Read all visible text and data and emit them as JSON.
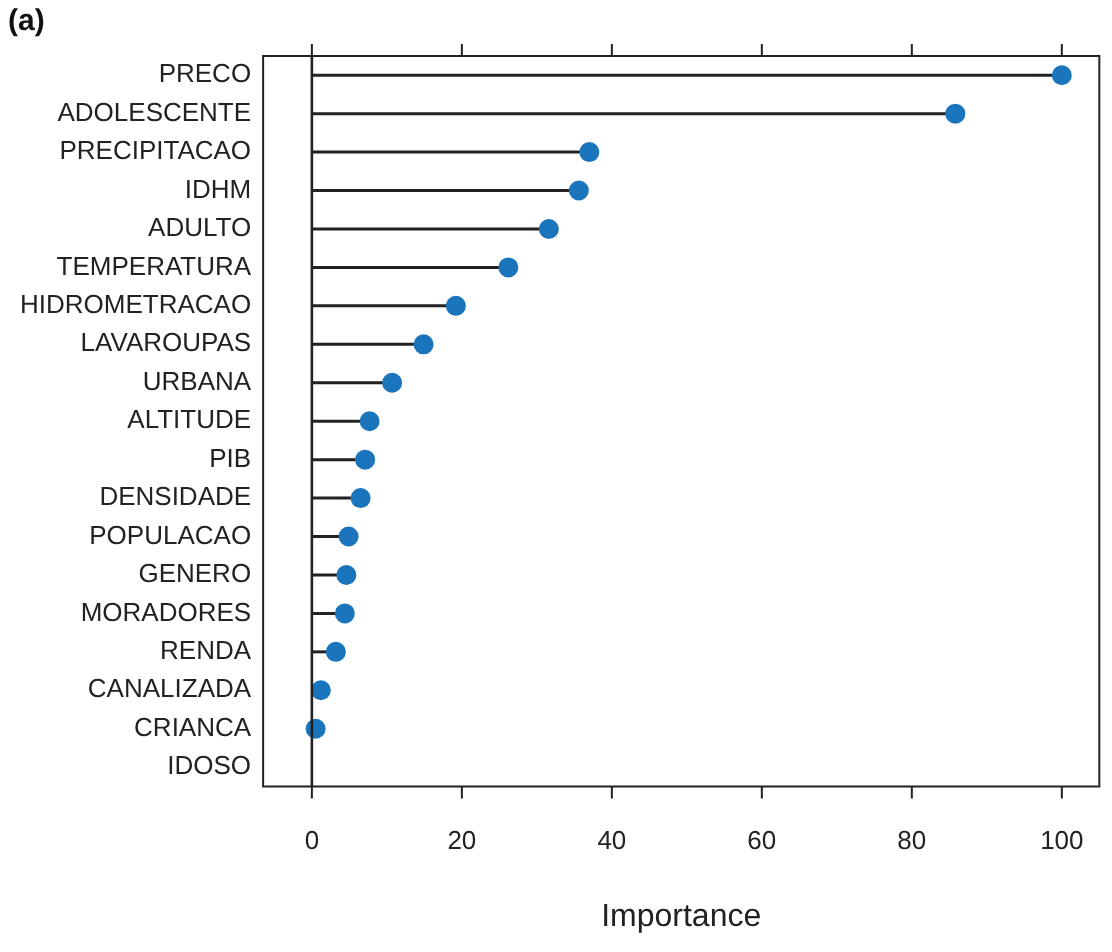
{
  "chart_data": {
    "type": "lollipop",
    "orientation": "horizontal",
    "title": "(a)",
    "xlabel": "Importance",
    "categories": [
      "PRECO",
      "ADOLESCENTE",
      "PRECIPITACAO",
      "IDHM",
      "ADULTO",
      "TEMPERATURA",
      "HIDROMETRACAO",
      "LAVAROUPAS",
      "URBANA",
      "ALTITUDE",
      "PIB",
      "DENSIDADE",
      "POPULACAO",
      "GENERO",
      "MORADORES",
      "RENDA",
      "CANALIZADA",
      "CRIANCA",
      "IDOSO"
    ],
    "values": [
      100,
      85.8,
      37,
      35.6,
      31.6,
      26.2,
      19.2,
      14.9,
      10.7,
      7.7,
      7.1,
      6.5,
      4.9,
      4.6,
      4.4,
      3.2,
      1.2,
      0.5,
      null
    ],
    "color": "#1a75bc",
    "marker": "circle",
    "xlim": [
      -6.5,
      105
    ],
    "xticks": [
      0,
      20,
      40,
      60,
      80,
      100
    ],
    "grid": false,
    "legend": false
  }
}
